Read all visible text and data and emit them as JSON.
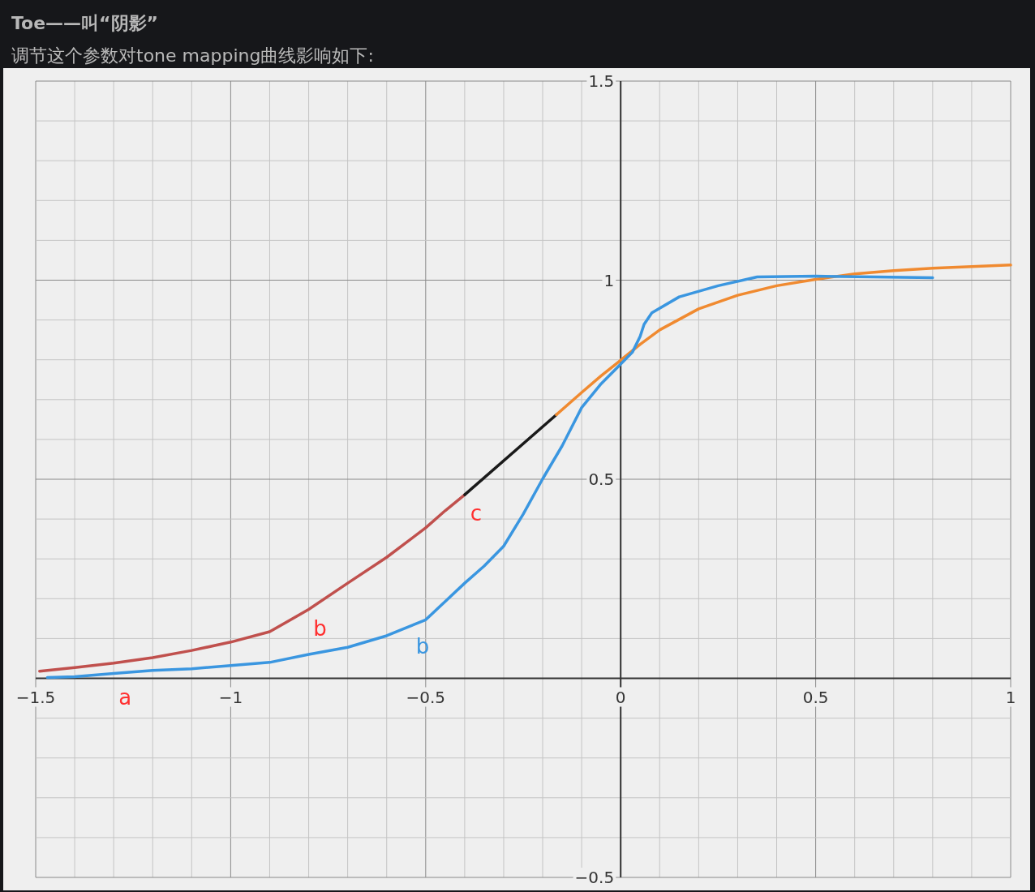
{
  "chart_data": {
    "type": "line",
    "title": "Toe——叫“阴影”",
    "subtitle": "调节这个参数对tone mapping曲线影响如下:",
    "xlim": [
      -1.5,
      1
    ],
    "ylim": [
      -0.5,
      1.5
    ],
    "xticks": [
      -1.5,
      {
        "value": -1.4,
        "label": null
      },
      {
        "value": -1.3,
        "label": null
      },
      {
        "value": -1.2,
        "label": null
      },
      {
        "value": -1.1,
        "label": null
      },
      -1,
      {
        "value": -0.9,
        "label": null
      },
      {
        "value": -0.8,
        "label": null
      },
      {
        "value": -0.7,
        "label": null
      },
      {
        "value": -0.6,
        "label": null
      },
      -0.5,
      {
        "value": -0.4,
        "label": null
      },
      {
        "value": -0.3,
        "label": null
      },
      {
        "value": -0.2,
        "label": null
      },
      {
        "value": -0.1,
        "label": null
      },
      0,
      {
        "value": 0.1,
        "label": null
      },
      {
        "value": 0.2,
        "label": null
      },
      {
        "value": 0.3,
        "label": null
      },
      {
        "value": 0.4,
        "label": null
      },
      0.5,
      {
        "value": 0.6,
        "label": null
      },
      {
        "value": 0.7,
        "label": null
      },
      {
        "value": 0.8,
        "label": null
      },
      {
        "value": 0.9,
        "label": null
      },
      1
    ],
    "yticks": [
      -0.5,
      {
        "value": -0.4,
        "label": null
      },
      {
        "value": -0.3,
        "label": null
      },
      {
        "value": -0.2,
        "label": null
      },
      {
        "value": -0.1,
        "label": null
      },
      {
        "value": 0,
        "label": null
      },
      {
        "value": 0.1,
        "label": null
      },
      {
        "value": 0.2,
        "label": null
      },
      {
        "value": 0.3,
        "label": null
      },
      {
        "value": 0.4,
        "label": null
      },
      0.5,
      {
        "value": 0.6,
        "label": null
      },
      {
        "value": 0.7,
        "label": null
      },
      {
        "value": 0.8,
        "label": null
      },
      {
        "value": 0.9,
        "label": null
      },
      1,
      {
        "value": 1.1,
        "label": null
      },
      {
        "value": 1.2,
        "label": null
      },
      {
        "value": 1.3,
        "label": null
      },
      {
        "value": 1.4,
        "label": null
      },
      1.5
    ],
    "grid": true,
    "series": [
      {
        "color": "#c0504d",
        "x": [
          -1.49,
          -1.4,
          -1.3,
          -1.2,
          -1.1,
          -1.0,
          -0.9,
          -0.8,
          -0.7,
          -0.6,
          -0.5,
          -0.45,
          -0.4
        ],
        "values": [
          0.018,
          0.027,
          0.038,
          0.052,
          0.07,
          0.091,
          0.117,
          0.173,
          0.239,
          0.304,
          0.378,
          0.421,
          0.461
        ]
      },
      {
        "color": "#1a1a1a",
        "x": [
          -0.4,
          -0.165
        ],
        "values": [
          0.461,
          0.662
        ]
      },
      {
        "color": "#f08a30",
        "x": [
          -0.165,
          -0.1,
          -0.05,
          0,
          0.05,
          0.1,
          0.2,
          0.3,
          0.4,
          0.5,
          0.6,
          0.7,
          0.8,
          0.9,
          1.0
        ],
        "values": [
          0.662,
          0.718,
          0.76,
          0.799,
          0.839,
          0.875,
          0.928,
          0.962,
          0.986,
          1.002,
          1.016,
          1.024,
          1.03,
          1.034,
          1.038
        ]
      },
      {
        "name": "b",
        "color": "#3a96e0",
        "x": [
          -1.47,
          -1.4,
          -1.3,
          -1.2,
          -1.1,
          -1.0,
          -0.9,
          -0.8,
          -0.7,
          -0.6,
          -0.5,
          -0.45,
          -0.4,
          -0.35,
          -0.3,
          -0.25,
          -0.2,
          -0.15,
          -0.1,
          -0.05,
          0,
          0.03,
          0.05,
          0.06,
          0.08,
          0.15,
          0.25,
          0.35,
          0.5,
          0.65,
          0.8
        ],
        "values": [
          0.002,
          0.004,
          0.012,
          0.02,
          0.024,
          0.032,
          0.04,
          0.06,
          0.078,
          0.107,
          0.147,
          0.193,
          0.239,
          0.282,
          0.332,
          0.412,
          0.501,
          0.584,
          0.68,
          0.74,
          0.789,
          0.819,
          0.859,
          0.889,
          0.918,
          0.958,
          0.986,
          1.008,
          1.01,
          1.008,
          1.006
        ]
      }
    ],
    "annotations": [
      {
        "text": "a",
        "x": -1.3,
        "y": 0
      },
      {
        "text": "b",
        "x": -0.8,
        "y": 0.173
      },
      {
        "text": "c",
        "x": -0.4,
        "y": 0.461
      }
    ]
  }
}
